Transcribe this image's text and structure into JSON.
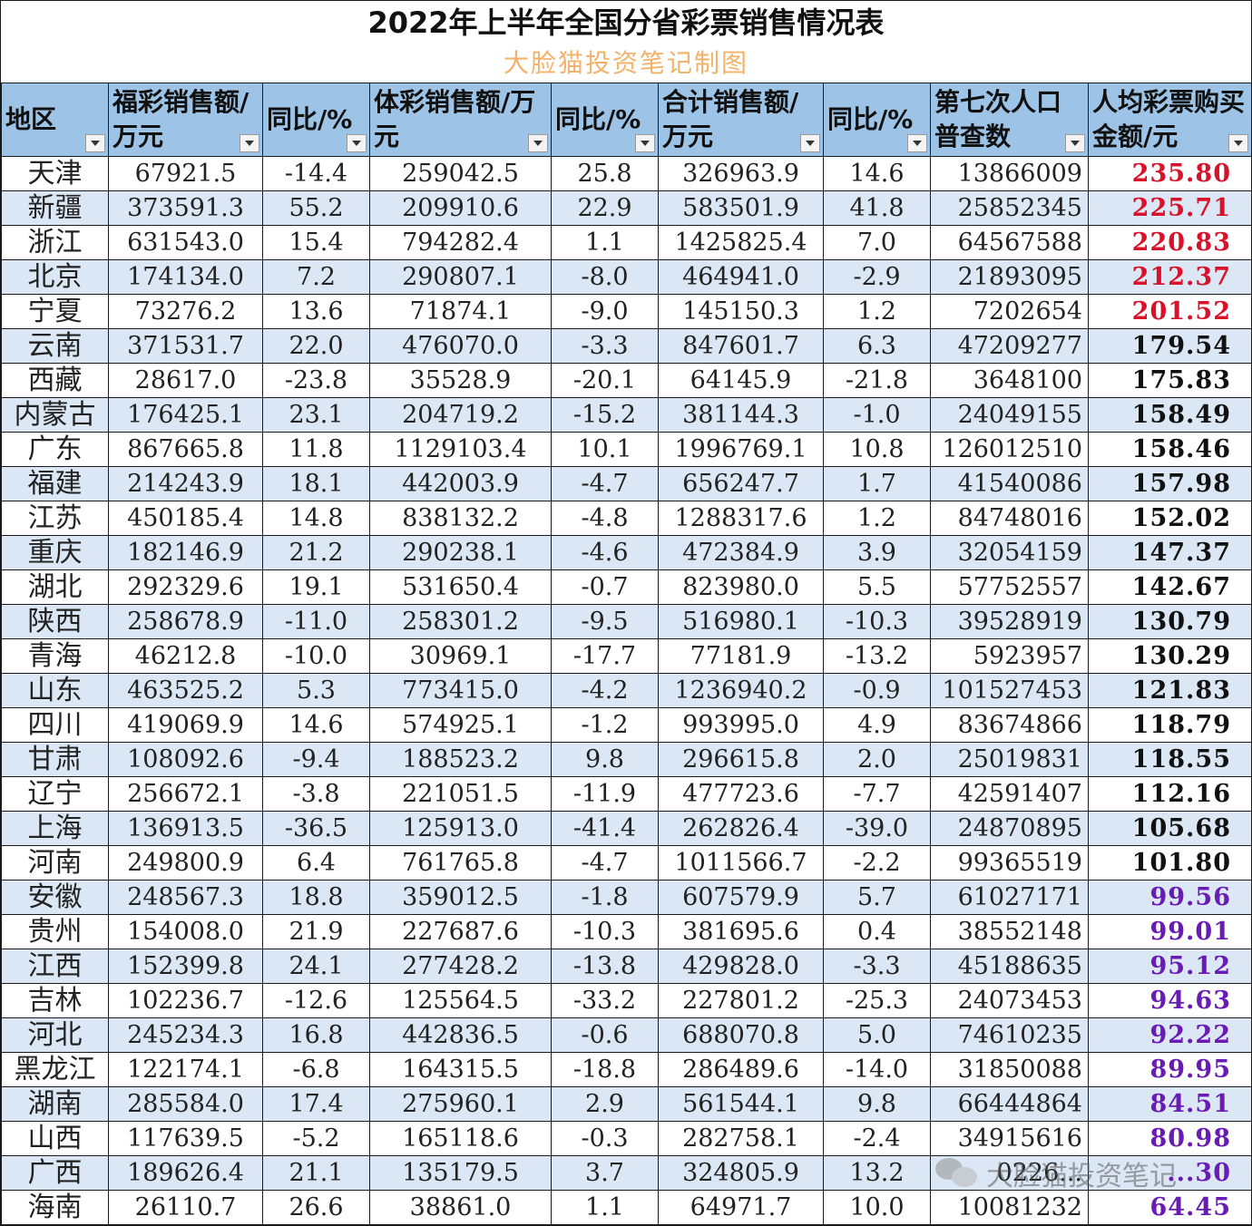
{
  "title": "2022年上半年全国分省彩票销售情况表",
  "subtitle": "大脸猫投资笔记制图",
  "watermark": "大脸猫投资笔记",
  "colors": {
    "header_bg": "#9dc3e6",
    "alt_row_bg": "#dbe7f5",
    "top_red": "#d9112a",
    "bottom_purple": "#6a1bb5",
    "subtitle": "#f3b26a"
  },
  "headers": [
    "地区",
    "福彩销售额/万元",
    "同比/%",
    "体彩销售额/万元",
    "同比/%",
    "合计销售额/万元",
    "同比/%",
    "第七次人口普查数",
    "人均彩票购买金额/元"
  ],
  "rows": [
    [
      "天津",
      "67921.5",
      "-14.4",
      "259042.5",
      "25.8",
      "326963.9",
      "14.6",
      "13866009",
      "235.80"
    ],
    [
      "新疆",
      "373591.3",
      "55.2",
      "209910.6",
      "22.9",
      "583501.9",
      "41.8",
      "25852345",
      "225.71"
    ],
    [
      "浙江",
      "631543.0",
      "15.4",
      "794282.4",
      "1.1",
      "1425825.4",
      "7.0",
      "64567588",
      "220.83"
    ],
    [
      "北京",
      "174134.0",
      "7.2",
      "290807.1",
      "-8.0",
      "464941.0",
      "-2.9",
      "21893095",
      "212.37"
    ],
    [
      "宁夏",
      "73276.2",
      "13.6",
      "71874.1",
      "-9.0",
      "145150.3",
      "1.2",
      "7202654",
      "201.52"
    ],
    [
      "云南",
      "371531.7",
      "22.0",
      "476070.0",
      "-3.3",
      "847601.7",
      "6.3",
      "47209277",
      "179.54"
    ],
    [
      "西藏",
      "28617.0",
      "-23.8",
      "35528.9",
      "-20.1",
      "64145.9",
      "-21.8",
      "3648100",
      "175.83"
    ],
    [
      "内蒙古",
      "176425.1",
      "23.1",
      "204719.2",
      "-15.2",
      "381144.3",
      "-1.0",
      "24049155",
      "158.49"
    ],
    [
      "广东",
      "867665.8",
      "11.8",
      "1129103.4",
      "10.1",
      "1996769.1",
      "10.8",
      "126012510",
      "158.46"
    ],
    [
      "福建",
      "214243.9",
      "18.1",
      "442003.9",
      "-4.7",
      "656247.7",
      "1.7",
      "41540086",
      "157.98"
    ],
    [
      "江苏",
      "450185.4",
      "14.8",
      "838132.2",
      "-4.8",
      "1288317.6",
      "1.2",
      "84748016",
      "152.02"
    ],
    [
      "重庆",
      "182146.9",
      "21.2",
      "290238.1",
      "-4.6",
      "472384.9",
      "3.9",
      "32054159",
      "147.37"
    ],
    [
      "湖北",
      "292329.6",
      "19.1",
      "531650.4",
      "-0.7",
      "823980.0",
      "5.5",
      "57752557",
      "142.67"
    ],
    [
      "陕西",
      "258678.9",
      "-11.0",
      "258301.2",
      "-9.5",
      "516980.1",
      "-10.3",
      "39528919",
      "130.79"
    ],
    [
      "青海",
      "46212.8",
      "-10.0",
      "30969.1",
      "-17.7",
      "77181.9",
      "-13.2",
      "5923957",
      "130.29"
    ],
    [
      "山东",
      "463525.2",
      "5.3",
      "773415.0",
      "-4.2",
      "1236940.2",
      "-0.9",
      "101527453",
      "121.83"
    ],
    [
      "四川",
      "419069.9",
      "14.6",
      "574925.1",
      "-1.2",
      "993995.0",
      "4.9",
      "83674866",
      "118.79"
    ],
    [
      "甘肃",
      "108092.6",
      "-9.4",
      "188523.2",
      "9.8",
      "296615.8",
      "2.0",
      "25019831",
      "118.55"
    ],
    [
      "辽宁",
      "256672.1",
      "-3.8",
      "221051.5",
      "-11.9",
      "477723.6",
      "-7.7",
      "42591407",
      "112.16"
    ],
    [
      "上海",
      "136913.5",
      "-36.5",
      "125913.0",
      "-41.4",
      "262826.4",
      "-39.0",
      "24870895",
      "105.68"
    ],
    [
      "河南",
      "249800.9",
      "6.4",
      "761765.8",
      "-4.7",
      "1011566.7",
      "-2.2",
      "99365519",
      "101.80"
    ],
    [
      "安徽",
      "248567.3",
      "18.8",
      "359012.5",
      "-1.8",
      "607579.9",
      "5.7",
      "61027171",
      "99.56"
    ],
    [
      "贵州",
      "154008.0",
      "21.9",
      "227687.6",
      "-10.3",
      "381695.6",
      "0.4",
      "38552148",
      "99.01"
    ],
    [
      "江西",
      "152399.8",
      "24.1",
      "277428.2",
      "-13.8",
      "429828.0",
      "-3.3",
      "45188635",
      "95.12"
    ],
    [
      "吉林",
      "102236.7",
      "-12.6",
      "125564.5",
      "-33.2",
      "227801.2",
      "-25.3",
      "24073453",
      "94.63"
    ],
    [
      "河北",
      "245234.3",
      "16.8",
      "442836.5",
      "-0.6",
      "688070.8",
      "5.0",
      "74610235",
      "92.22"
    ],
    [
      "黑龙江",
      "122174.1",
      "-6.8",
      "164315.5",
      "-18.8",
      "286489.6",
      "-14.0",
      "31850088",
      "89.95"
    ],
    [
      "湖南",
      "285584.0",
      "17.4",
      "275960.1",
      "2.9",
      "561544.1",
      "9.8",
      "66444864",
      "84.51"
    ],
    [
      "山西",
      "117639.5",
      "-5.2",
      "165118.6",
      "-0.3",
      "282758.1",
      "-2.4",
      "34915616",
      "80.98"
    ],
    [
      "广西",
      "189626.4",
      "21.1",
      "135179.5",
      "3.7",
      "324805.9",
      "13.2",
      "0226...",
      "...30"
    ],
    [
      "海南",
      "26110.7",
      "26.6",
      "38861.0",
      "1.1",
      "64971.7",
      "10.0",
      "10081232",
      "64.45"
    ]
  ]
}
